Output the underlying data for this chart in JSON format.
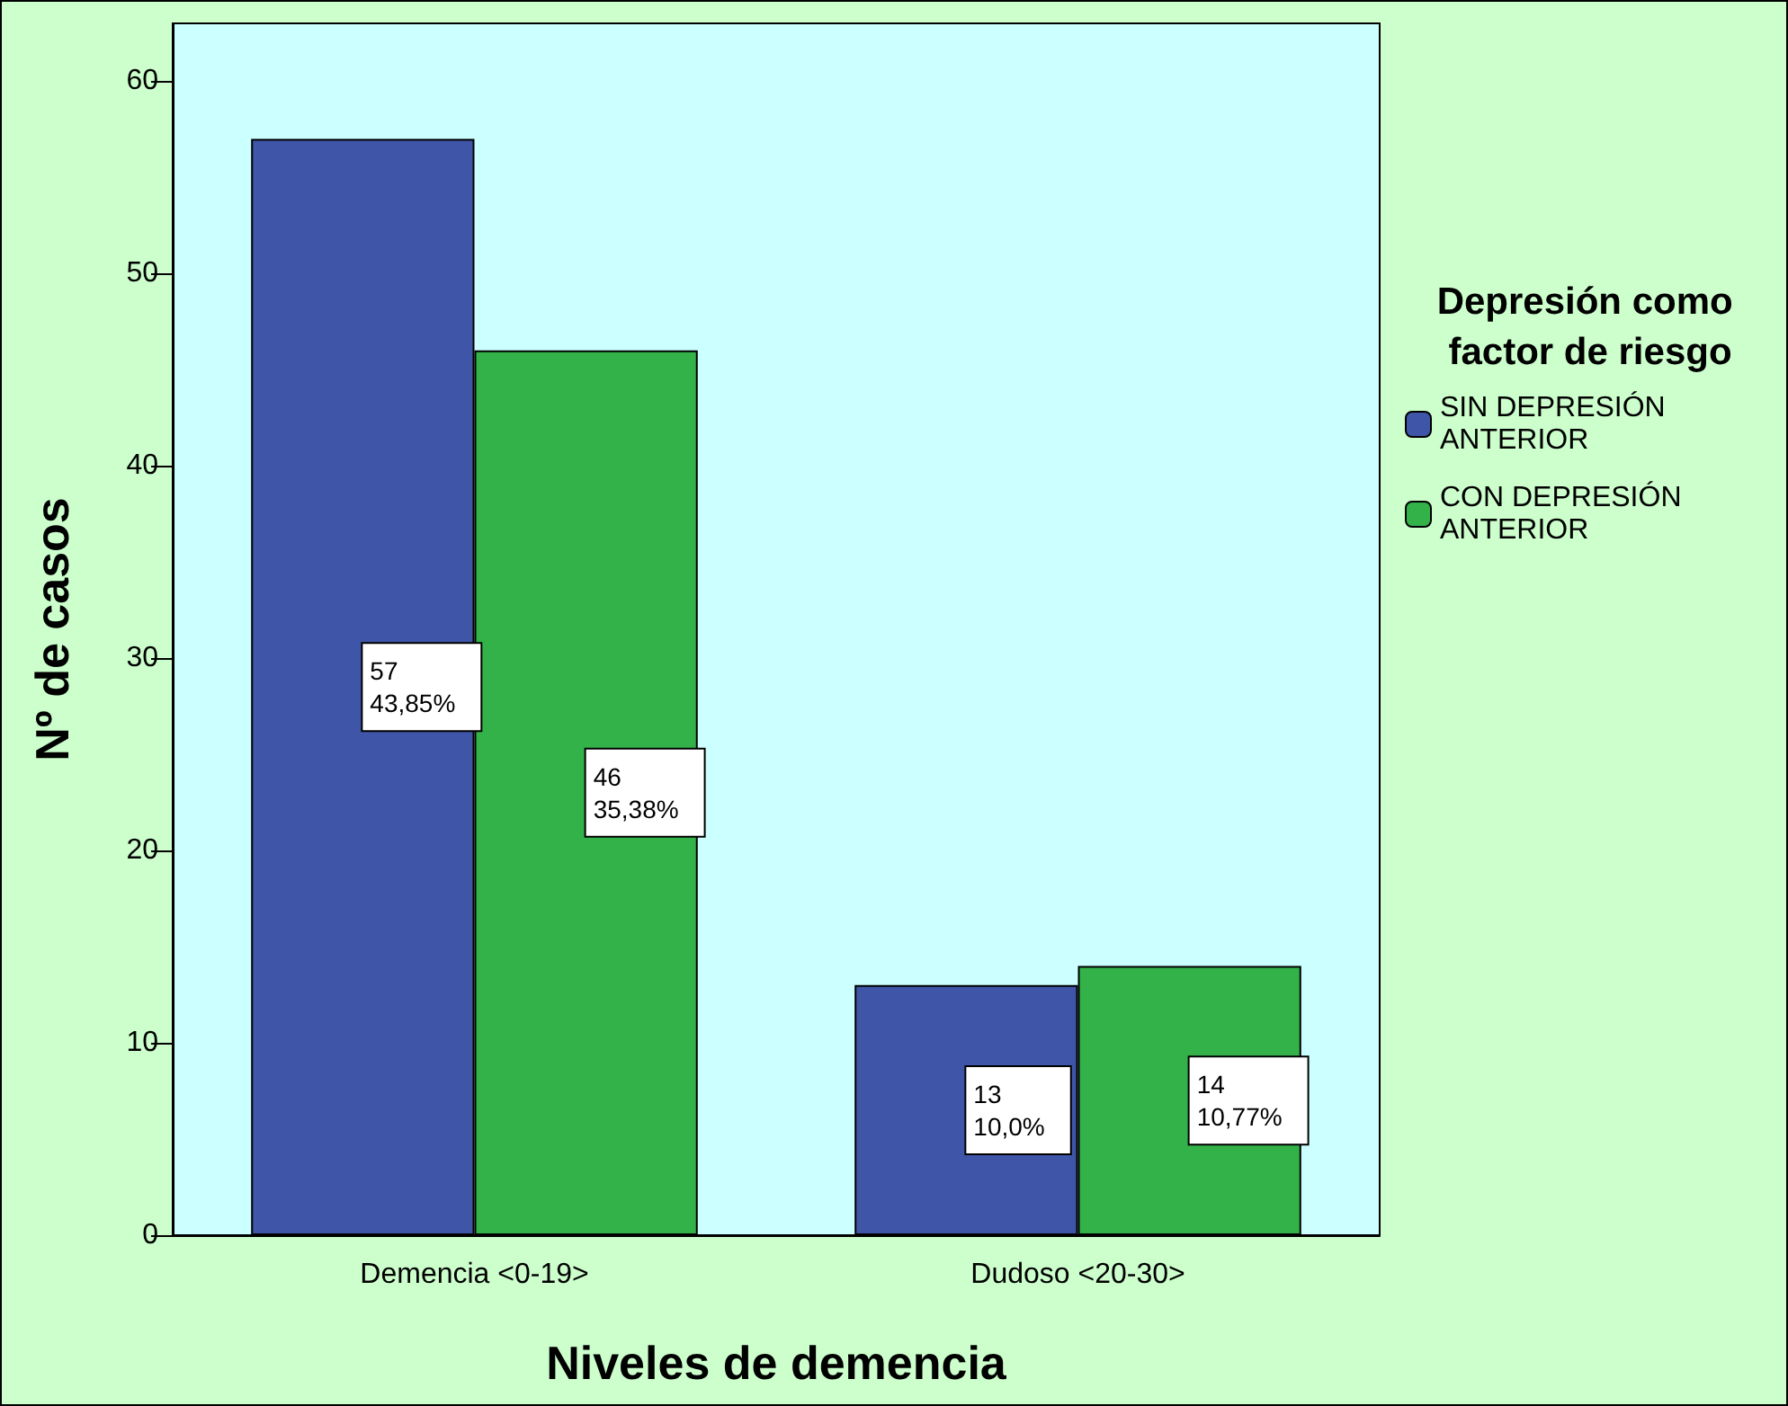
{
  "chart_data": {
    "type": "bar",
    "xlabel": "Niveles de demencia",
    "ylabel": "Nº de casos",
    "legend_title": "Depresión como factor de riesgo",
    "categories": [
      "Demencia <0-19>",
      "Dudoso <20-30>"
    ],
    "series": [
      {
        "name": "SIN DEPRESIÓN ANTERIOR",
        "color": "#3f56a8",
        "values": [
          57,
          13
        ],
        "value_labels": [
          "57\n43,85%",
          "13\n10,0%"
        ]
      },
      {
        "name": "CON DEPRESIÓN ANTERIOR",
        "color": "#33b24a",
        "values": [
          46,
          14
        ],
        "value_labels": [
          "46\n35,38%",
          "14\n10,77%"
        ]
      }
    ],
    "ylim": [
      0,
      63
    ],
    "yticks": [
      0,
      10,
      20,
      30,
      40,
      50,
      60
    ],
    "legend": "right"
  }
}
